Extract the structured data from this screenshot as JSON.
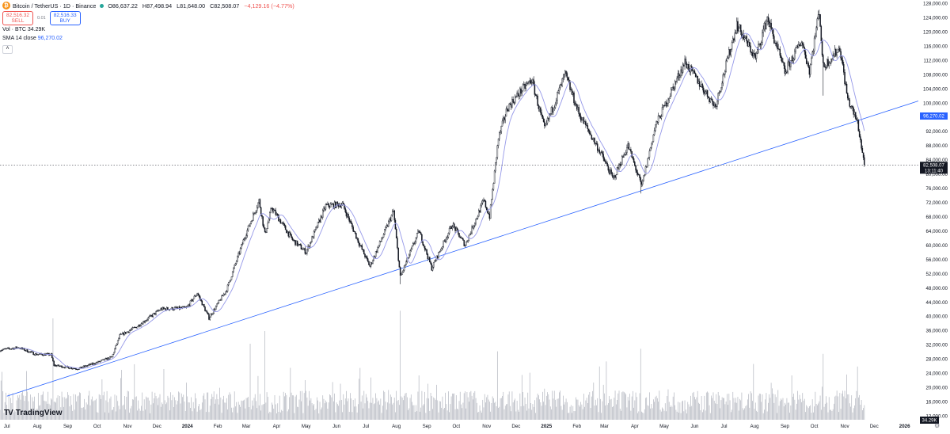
{
  "header": {
    "pair": "Bitcoin / TetherUS · 1D · Binance",
    "open": "O86,637.22",
    "high": "H87,498.94",
    "low": "L81,648.00",
    "close": "C82,508.07",
    "change": "−4,129.16 (−4.77%)"
  },
  "trade": {
    "sell_price": "82,516.32",
    "sell_label": "SELL",
    "spread": "0.01",
    "buy_price": "82,516.33",
    "buy_label": "BUY"
  },
  "volume_label": {
    "name": "Vol · BTC",
    "value": "34.29K"
  },
  "sma_label": {
    "name": "SMA 14 close",
    "value": "96,270.02"
  },
  "brand": "TradingView",
  "chart_data": {
    "type": "candlestick",
    "y_axis": {
      "min": 12000,
      "max": 128000,
      "ticks": [
        "128,000.00",
        "124,000.00",
        "120,000.00",
        "116,000.00",
        "112,000.00",
        "108,000.00",
        "104,000.00",
        "100,000.00",
        "96,000.00",
        "92,000.00",
        "88,000.00",
        "84,000.00",
        "80,000.00",
        "76,000.00",
        "72,000.00",
        "68,000.00",
        "64,000.00",
        "60,000.00",
        "56,000.00",
        "52,000.00",
        "48,000.00",
        "44,000.00",
        "40,000.00",
        "36,000.00",
        "32,000.00",
        "28,000.00",
        "24,000.00",
        "20,000.00",
        "16,000.00",
        "12,000.00"
      ]
    },
    "x_axis": {
      "start": "2023-06-24",
      "end": "2026-01-15",
      "labels": [
        {
          "date": "2023-07-01",
          "text": "Jul"
        },
        {
          "date": "2023-08-01",
          "text": "Aug"
        },
        {
          "date": "2023-09-01",
          "text": "Sep"
        },
        {
          "date": "2023-10-01",
          "text": "Oct"
        },
        {
          "date": "2023-11-01",
          "text": "Nov"
        },
        {
          "date": "2023-12-01",
          "text": "Dec"
        },
        {
          "date": "2024-01-01",
          "text": "2024"
        },
        {
          "date": "2024-02-01",
          "text": "Feb"
        },
        {
          "date": "2024-03-01",
          "text": "Mar"
        },
        {
          "date": "2024-04-01",
          "text": "Apr"
        },
        {
          "date": "2024-05-01",
          "text": "May"
        },
        {
          "date": "2024-06-01",
          "text": "Jun"
        },
        {
          "date": "2024-07-01",
          "text": "Jul"
        },
        {
          "date": "2024-08-01",
          "text": "Aug"
        },
        {
          "date": "2024-09-01",
          "text": "Sep"
        },
        {
          "date": "2024-10-01",
          "text": "Oct"
        },
        {
          "date": "2024-11-01",
          "text": "Nov"
        },
        {
          "date": "2024-12-01",
          "text": "Dec"
        },
        {
          "date": "2025-01-01",
          "text": "2025"
        },
        {
          "date": "2025-02-01",
          "text": "Feb"
        },
        {
          "date": "2025-03-01",
          "text": "Mar"
        },
        {
          "date": "2025-04-01",
          "text": "Apr"
        },
        {
          "date": "2025-05-01",
          "text": "May"
        },
        {
          "date": "2025-06-01",
          "text": "Jun"
        },
        {
          "date": "2025-07-01",
          "text": "Jul"
        },
        {
          "date": "2025-08-01",
          "text": "Aug"
        },
        {
          "date": "2025-09-01",
          "text": "Sep"
        },
        {
          "date": "2025-10-01",
          "text": "Oct"
        },
        {
          "date": "2025-11-01",
          "text": "Nov"
        },
        {
          "date": "2025-12-01",
          "text": "Dec"
        },
        {
          "date": "2026-01-01",
          "text": "2026"
        }
      ]
    },
    "price_path": [
      [
        "2023-06-24",
        30500
      ],
      [
        "2023-07-13",
        31200
      ],
      [
        "2023-07-30",
        29300
      ],
      [
        "2023-08-15",
        29200
      ],
      [
        "2023-08-18",
        26200
      ],
      [
        "2023-09-11",
        25200
      ],
      [
        "2023-10-01",
        27000
      ],
      [
        "2023-10-16",
        28500
      ],
      [
        "2023-10-24",
        34500
      ],
      [
        "2023-11-10",
        37000
      ],
      [
        "2023-12-05",
        42000
      ],
      [
        "2023-12-31",
        42300
      ],
      [
        "2024-01-11",
        46500
      ],
      [
        "2024-01-23",
        39500
      ],
      [
        "2024-02-10",
        47500
      ],
      [
        "2024-02-28",
        62000
      ],
      [
        "2024-03-14",
        72500
      ],
      [
        "2024-03-20",
        63000
      ],
      [
        "2024-03-27",
        70500
      ],
      [
        "2024-04-17",
        61500
      ],
      [
        "2024-05-01",
        58000
      ],
      [
        "2024-05-21",
        71000
      ],
      [
        "2024-06-07",
        71500
      ],
      [
        "2024-06-24",
        60500
      ],
      [
        "2024-07-05",
        54000
      ],
      [
        "2024-07-29",
        69500
      ],
      [
        "2024-08-05",
        51000
      ],
      [
        "2024-08-24",
        64000
      ],
      [
        "2024-09-06",
        53500
      ],
      [
        "2024-09-27",
        65800
      ],
      [
        "2024-10-10",
        60000
      ],
      [
        "2024-10-29",
        72500
      ],
      [
        "2024-11-04",
        68000
      ],
      [
        "2024-11-13",
        90000
      ],
      [
        "2024-11-22",
        98500
      ],
      [
        "2024-12-05",
        103000
      ],
      [
        "2024-12-17",
        106500
      ],
      [
        "2024-12-30",
        92500
      ],
      [
        "2025-01-20",
        108000
      ],
      [
        "2025-02-03",
        97000
      ],
      [
        "2025-02-25",
        86000
      ],
      [
        "2025-03-10",
        78500
      ],
      [
        "2025-03-25",
        88000
      ],
      [
        "2025-04-08",
        76500
      ],
      [
        "2025-04-22",
        93500
      ],
      [
        "2025-05-22",
        111500
      ],
      [
        "2025-06-22",
        99000
      ],
      [
        "2025-07-14",
        122000
      ],
      [
        "2025-08-02",
        112500
      ],
      [
        "2025-08-14",
        124000
      ],
      [
        "2025-09-01",
        108500
      ],
      [
        "2025-09-18",
        117500
      ],
      [
        "2025-09-26",
        109000
      ],
      [
        "2025-10-06",
        126000
      ],
      [
        "2025-10-10",
        110000
      ],
      [
        "2025-10-27",
        115500
      ],
      [
        "2025-11-04",
        101000
      ],
      [
        "2025-11-14",
        94500
      ],
      [
        "2025-11-21",
        82500
      ]
    ],
    "wicks": [
      {
        "date": "2024-08-05",
        "low": 49000
      },
      {
        "date": "2025-04-07",
        "low": 74500
      },
      {
        "date": "2025-10-10",
        "low": 102000
      },
      {
        "date": "2025-10-06",
        "high": 126200
      }
    ],
    "trendline": {
      "from": [
        "2023-07-01",
        17500
      ],
      "to": [
        "2026-01-15",
        100500
      ]
    },
    "sma_period": 14,
    "last_price": {
      "value": 82508.07,
      "label": "82,508.07",
      "countdown": "13:11:40",
      "date": "2025-11-21"
    },
    "sma_last": {
      "value": 96270.02,
      "label": "96,270.02"
    },
    "volume_last": {
      "label": "34.29K"
    },
    "volume_spikes": [
      {
        "date": "2023-08-17",
        "value": 4.0
      },
      {
        "date": "2023-12-08",
        "value": 2.0
      },
      {
        "date": "2024-03-05",
        "value": 3.0
      },
      {
        "date": "2024-03-20",
        "value": 3.5
      },
      {
        "date": "2024-08-05",
        "value": 4.3
      },
      {
        "date": "2024-11-12",
        "value": 2.7
      },
      {
        "date": "2025-03-03",
        "value": 2.3
      },
      {
        "date": "2025-04-07",
        "value": 2.8
      },
      {
        "date": "2025-10-10",
        "value": 2.6
      },
      {
        "date": "2025-11-14",
        "value": 2.1
      }
    ],
    "colors": {
      "candle": "#131722",
      "trendline": "#2962ff",
      "sma": "#9598e8",
      "volume": "#b2b5be",
      "price_tag": "#131722",
      "sma_tag": "#2962ff"
    }
  }
}
